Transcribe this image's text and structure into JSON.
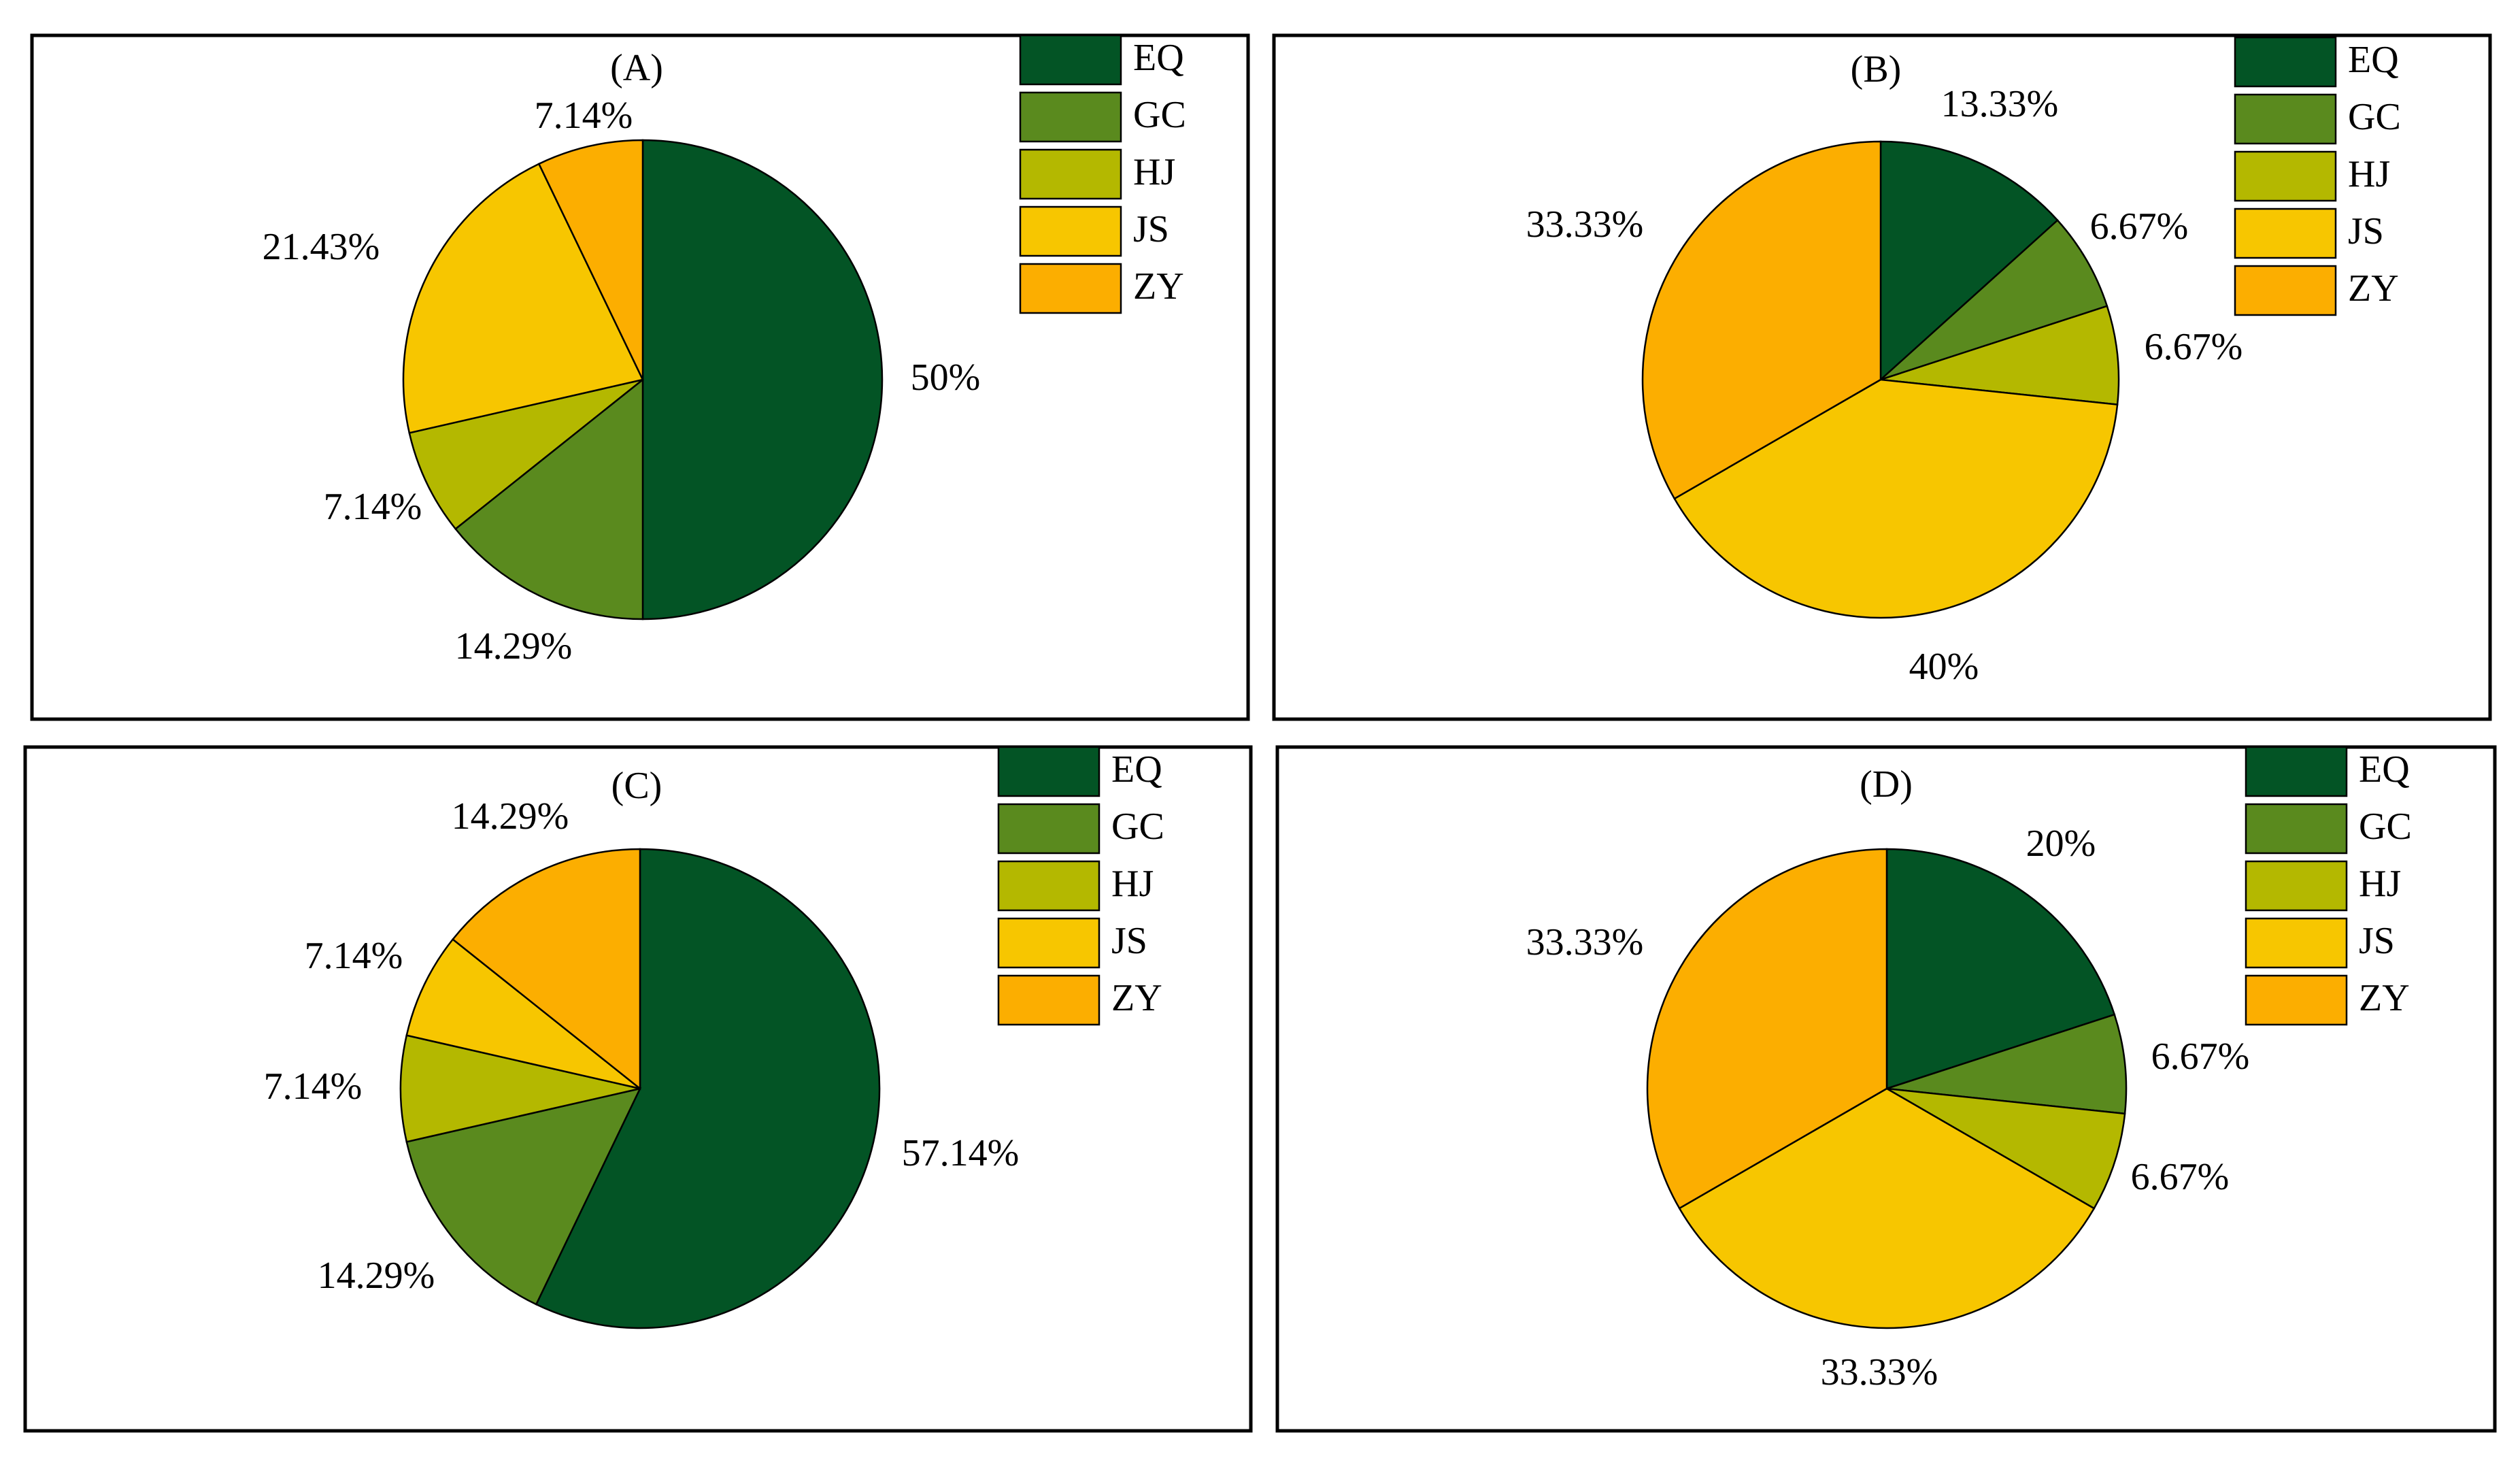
{
  "chart_data": [
    {
      "type": "pie",
      "title": "(A)",
      "categories": [
        "EQ",
        "GC",
        "HJ",
        "JS",
        "ZY"
      ],
      "values": [
        50,
        14.29,
        7.14,
        21.43,
        7.14
      ],
      "labels": [
        "50%",
        "14.29%",
        "7.14%",
        "21.43%",
        "7.14%"
      ],
      "colors": [
        "#035425",
        "#5A8A1E",
        "#B4B800",
        "#F7C600",
        "#FCAE00"
      ],
      "legend": "top-right"
    },
    {
      "type": "pie",
      "title": "(B)",
      "categories": [
        "EQ",
        "GC",
        "HJ",
        "JS",
        "ZY"
      ],
      "values": [
        13.33,
        6.67,
        6.67,
        40,
        33.33
      ],
      "labels": [
        "13.33%",
        "6.67%",
        "6.67%",
        "40%",
        "33.33%"
      ],
      "colors": [
        "#035425",
        "#5A8A1E",
        "#B4B800",
        "#F7C600",
        "#FCAE00"
      ],
      "legend": "top-right"
    },
    {
      "type": "pie",
      "title": "(C)",
      "categories": [
        "EQ",
        "GC",
        "HJ",
        "JS",
        "ZY"
      ],
      "values": [
        57.14,
        14.29,
        7.14,
        7.14,
        14.29
      ],
      "labels": [
        "57.14%",
        "14.29%",
        "7.14%",
        "7.14%",
        "14.29%"
      ],
      "colors": [
        "#035425",
        "#5A8A1E",
        "#B4B800",
        "#F7C600",
        "#FCAE00"
      ],
      "legend": "top-right"
    },
    {
      "type": "pie",
      "title": "(D)",
      "categories": [
        "EQ",
        "GC",
        "HJ",
        "JS",
        "ZY"
      ],
      "values": [
        20,
        6.67,
        6.67,
        33.33,
        33.33
      ],
      "labels": [
        "20%",
        "6.67%",
        "6.67%",
        "33.33%",
        "33.33%"
      ],
      "colors": [
        "#035425",
        "#5A8A1E",
        "#B4B800",
        "#F7C600",
        "#FCAE00"
      ],
      "legend": "top-right"
    }
  ]
}
